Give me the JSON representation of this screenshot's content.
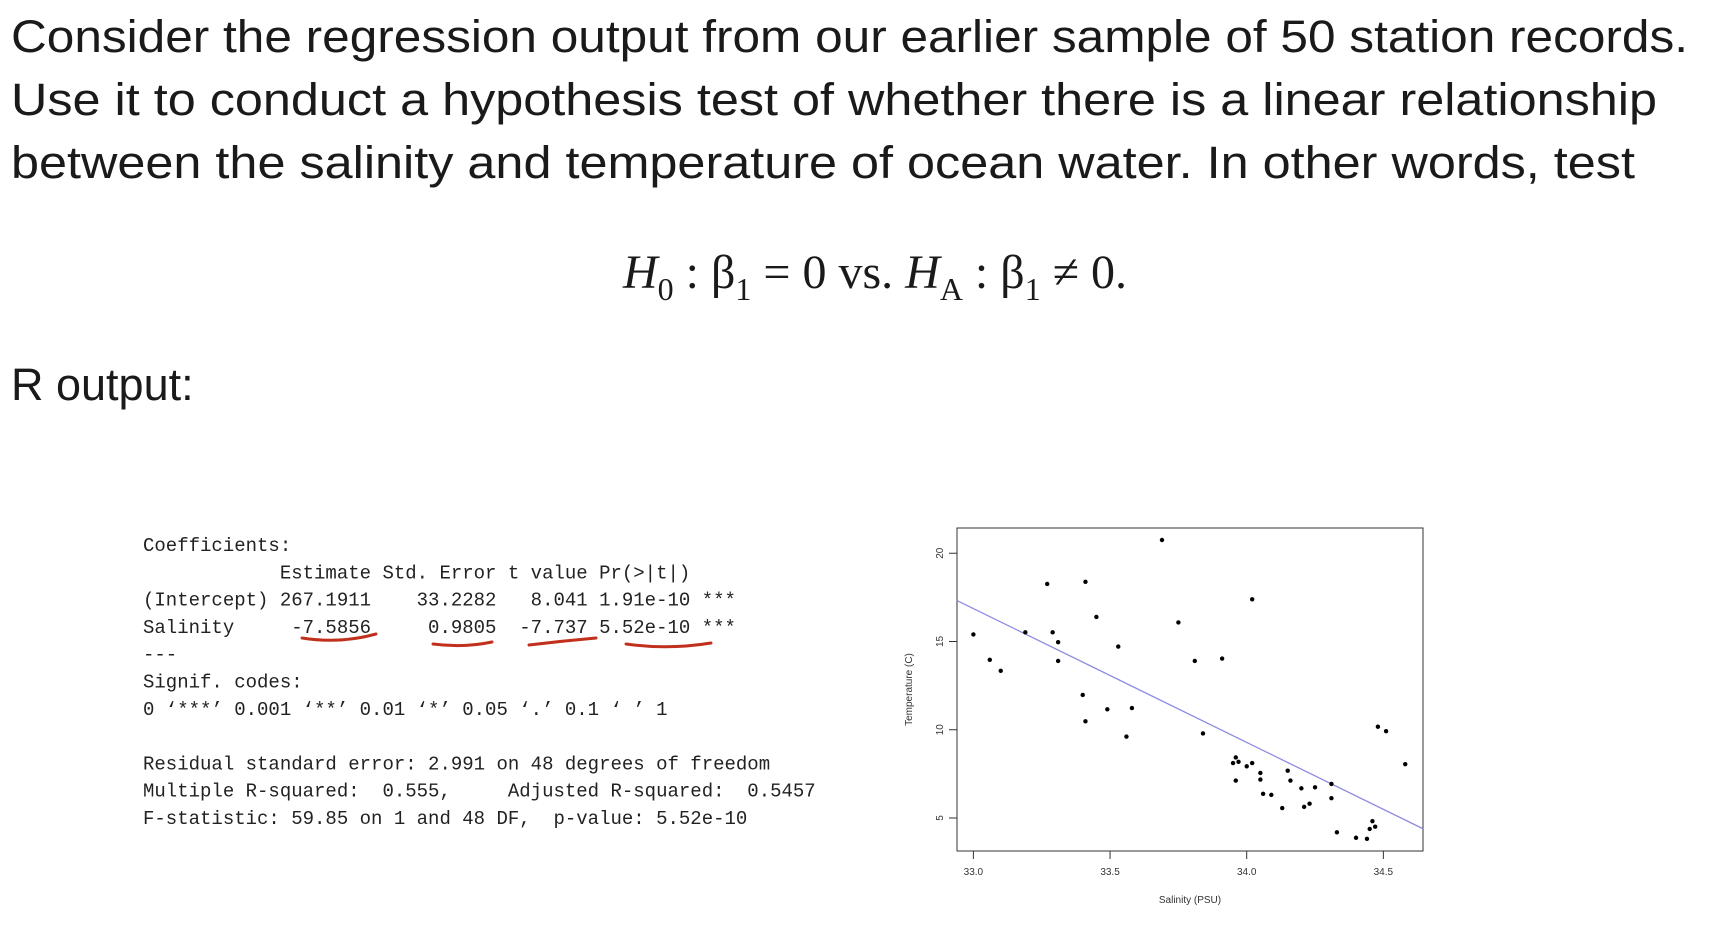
{
  "slide": {
    "paragraph": [
      "Consider the regression output from our earlier sample of 50 station records.",
      "Use it to conduct a hypothesis test of whether there is a linear relationship",
      "between the salinity and temperature of ocean water.  In other words, test"
    ],
    "formula": [
      "H",
      "0",
      " : β",
      "1",
      " = 0 vs. ",
      "H",
      "A",
      " : β",
      "1",
      " ≠ 0."
    ],
    "r_output_heading": "R output:",
    "r_output": [
      "Coefficients:",
      "            Estimate Std. Error t value Pr(>|t|)",
      "(Intercept) 267.1911    33.2282   8.041 1.91e-10 ***",
      "Salinity     -7.5856     0.9805  -7.737 5.52e-10 ***",
      "---",
      "Signif. codes:",
      "0 ‘***’ 0.001 ‘**’ 0.01 ‘*’ 0.05 ‘.’ 0.1 ‘ ’ 1",
      "Residual standard error: 2.991 on 48 degrees of freedom",
      "Multiple R-squared:  0.555,     Adjusted R-squared:  0.5457",
      "F-statistic: 59.85 on 1 and 48 DF,  p-value: 5.52e-10"
    ]
  },
  "chart_data": {
    "type": "scatter",
    "x_label": "Salinity (PSU)",
    "y_label": "Temperature (C)",
    "x": [
      33.0,
      33.06,
      33.1,
      33.19,
      33.27,
      33.29,
      33.31,
      33.31,
      33.41,
      33.4,
      33.41,
      33.45,
      33.49,
      33.53,
      33.56,
      33.58,
      33.69,
      33.75,
      33.81,
      33.84,
      33.91,
      33.95,
      33.96,
      33.97,
      33.96,
      34.0,
      34.02,
      34.02,
      34.05,
      34.05,
      34.06,
      34.09,
      34.13,
      34.15,
      34.16,
      34.2,
      34.21,
      34.23,
      34.25,
      34.31,
      34.31,
      34.33,
      34.4,
      34.44,
      34.45,
      34.46,
      34.47,
      34.48,
      34.51,
      34.58
    ],
    "values": [
      15.4,
      13.96,
      13.34,
      15.52,
      18.26,
      15.52,
      14.96,
      13.9,
      18.38,
      11.97,
      10.48,
      16.39,
      11.16,
      14.71,
      9.61,
      11.23,
      20.75,
      16.08,
      13.9,
      9.79,
      14.03,
      8.11,
      8.43,
      8.18,
      7.12,
      7.93,
      8.11,
      17.39,
      7.55,
      7.18,
      6.37,
      6.31,
      5.56,
      7.68,
      7.12,
      6.68,
      5.63,
      5.81,
      6.74,
      6.93,
      6.12,
      4.19,
      3.88,
      3.82,
      4.38,
      4.82,
      4.51,
      10.17,
      9.92,
      8.05
    ],
    "color": "#000000",
    "fit_line": {
      "x": [
        32.94,
        34.645
      ],
      "y": [
        17.32,
        4.39
      ],
      "color": "#8c8ce0"
    },
    "xlim": [
      32.94,
      34.645
    ],
    "ylim": [
      3.13,
      21.43
    ],
    "xticks": [
      {
        "value": 33,
        "label": "33.0"
      },
      33.5,
      {
        "value": 34,
        "label": "34.0"
      },
      34.5
    ],
    "yticks": [
      5,
      10,
      15,
      20
    ]
  }
}
